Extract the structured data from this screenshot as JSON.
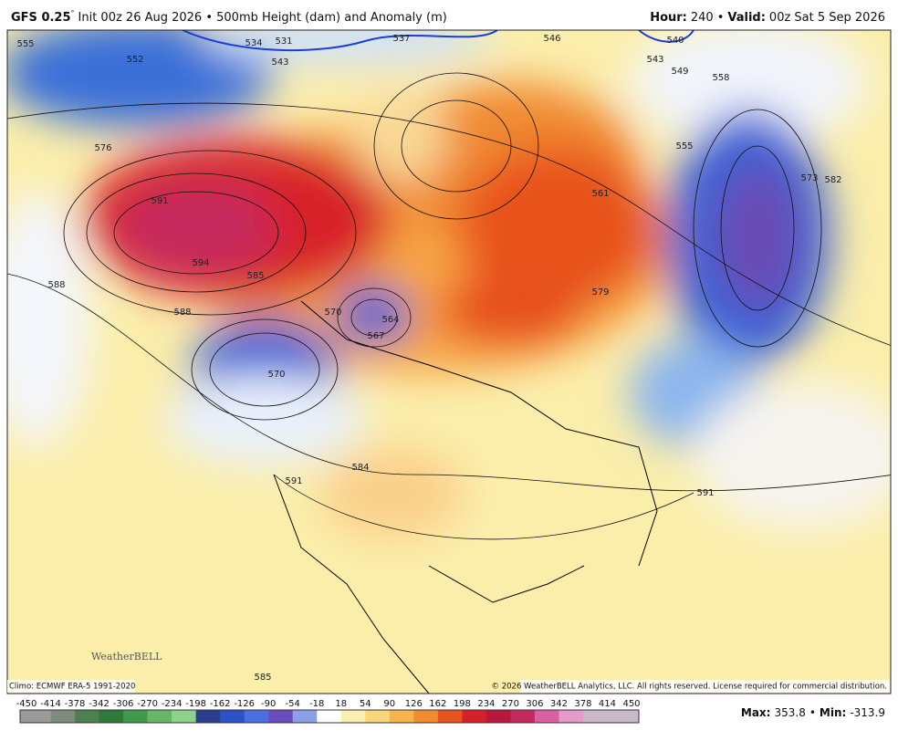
{
  "header": {
    "model": "GFS 0.25",
    "degree": "°",
    "title": "Init 00z 26 Aug 2026 • 500mb Height (dam) and Anomaly (m)",
    "hour_label": "Hour:",
    "hour": "240",
    "sep": "•",
    "valid_label": "Valid:",
    "valid": "00z Sat 5 Sep 2026"
  },
  "map": {
    "contour_labels": [
      "555",
      "552",
      "576",
      "591",
      "594",
      "585",
      "588",
      "570",
      "567",
      "564",
      "570",
      "579",
      "561",
      "555",
      "573",
      "582",
      "558",
      "549",
      "543",
      "546",
      "537",
      "531",
      "534",
      "540",
      "591",
      "584",
      "585",
      "591",
      "588",
      "543"
    ],
    "logo": "WeatherBELL"
  },
  "footer": {
    "climo": "Climo: ECMWF ERA-5 1991-2020",
    "copyright": "© 2026 WeatherBELL Analytics, LLC. All rights reserved. License required for commercial distribution.",
    "max_label": "Max:",
    "max": "353.8",
    "sep": "•",
    "min_label": "Min:",
    "min": "-313.9"
  },
  "colorbar": {
    "ticks": [
      "-450",
      "-414",
      "-378",
      "-342",
      "-306",
      "-270",
      "-234",
      "-198",
      "-162",
      "-126",
      "-90",
      "-54",
      "-18",
      "18",
      "54",
      "90",
      "126",
      "162",
      "198",
      "234",
      "270",
      "306",
      "342",
      "378",
      "414",
      "450"
    ]
  }
}
